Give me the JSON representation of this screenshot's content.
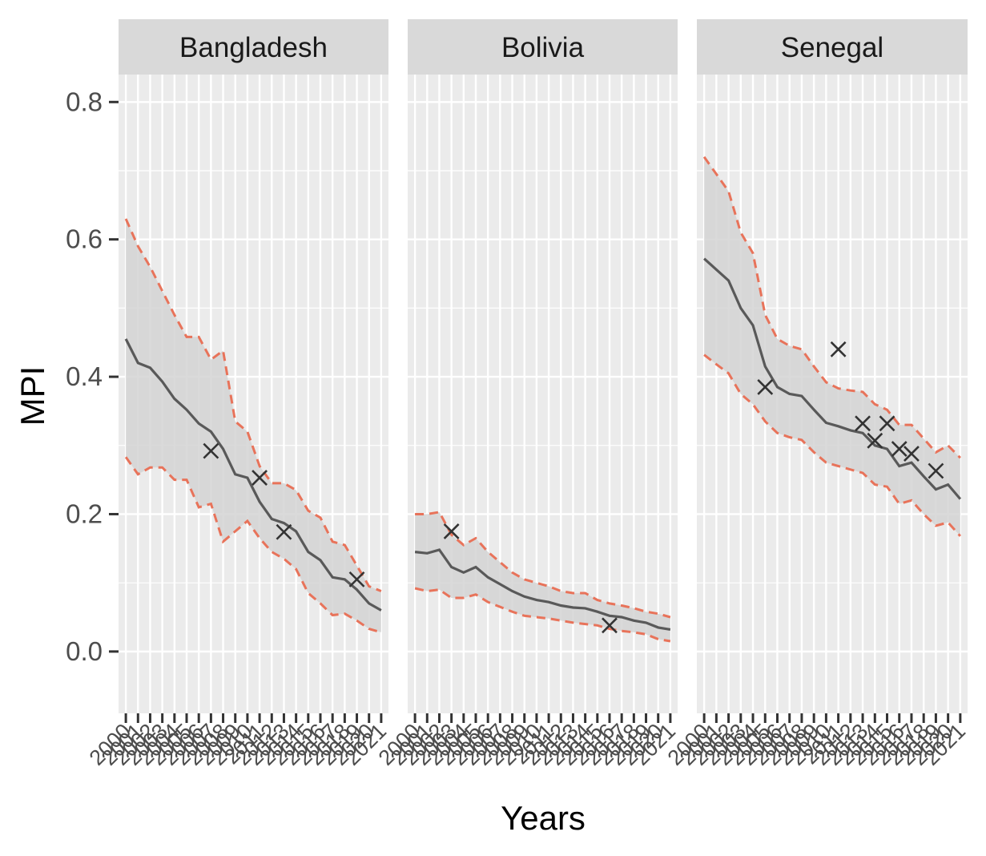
{
  "chart_data": {
    "type": "line",
    "xlabel": "Years",
    "ylabel": "MPI",
    "ylim": [
      -0.09,
      0.84
    ],
    "yticks": [
      0.0,
      0.2,
      0.4,
      0.6,
      0.8
    ],
    "ytick_labels": [
      "0.0",
      "0.2",
      "0.4",
      "0.6",
      "0.8"
    ],
    "x": [
      2000,
      2001,
      2002,
      2003,
      2004,
      2005,
      2006,
      2007,
      2008,
      2009,
      2010,
      2011,
      2012,
      2013,
      2014,
      2015,
      2016,
      2017,
      2018,
      2019,
      2020,
      2021
    ],
    "grid": true,
    "legend": "none",
    "colors": {
      "panel_bg": "#ebebeb",
      "strip_bg": "#d9d9d9",
      "grid": "#ffffff",
      "ribbon": "#d3d3d3",
      "line": "#595959",
      "bounds": "#e8735a",
      "points": "#333333"
    },
    "panels": [
      {
        "name": "Bangladesh",
        "estimate": [
          0.455,
          0.42,
          0.413,
          0.393,
          0.368,
          0.352,
          0.332,
          0.32,
          0.295,
          0.258,
          0.253,
          0.218,
          0.193,
          0.187,
          0.175,
          0.145,
          0.133,
          0.108,
          0.105,
          0.09,
          0.07,
          0.06
        ],
        "upper": [
          0.63,
          0.59,
          0.56,
          0.525,
          0.49,
          0.458,
          0.458,
          0.425,
          0.438,
          0.335,
          0.32,
          0.27,
          0.245,
          0.245,
          0.235,
          0.205,
          0.195,
          0.16,
          0.155,
          0.125,
          0.095,
          0.088
        ],
        "lower": [
          0.283,
          0.258,
          0.268,
          0.268,
          0.25,
          0.25,
          0.21,
          0.215,
          0.16,
          0.175,
          0.19,
          0.165,
          0.145,
          0.135,
          0.12,
          0.085,
          0.07,
          0.053,
          0.055,
          0.045,
          0.033,
          0.028
        ],
        "points": [
          {
            "x": 2007,
            "y": 0.292
          },
          {
            "x": 2011,
            "y": 0.253
          },
          {
            "x": 2013,
            "y": 0.174
          },
          {
            "x": 2019,
            "y": 0.105
          }
        ]
      },
      {
        "name": "Bolivia",
        "estimate": [
          0.145,
          0.143,
          0.148,
          0.123,
          0.115,
          0.123,
          0.108,
          0.098,
          0.088,
          0.08,
          0.075,
          0.072,
          0.067,
          0.064,
          0.063,
          0.058,
          0.052,
          0.05,
          0.045,
          0.042,
          0.035,
          0.032
        ],
        "upper": [
          0.2,
          0.2,
          0.203,
          0.17,
          0.155,
          0.165,
          0.145,
          0.13,
          0.115,
          0.105,
          0.1,
          0.095,
          0.088,
          0.085,
          0.085,
          0.075,
          0.07,
          0.067,
          0.063,
          0.058,
          0.055,
          0.05
        ],
        "lower": [
          0.092,
          0.088,
          0.09,
          0.078,
          0.078,
          0.083,
          0.072,
          0.065,
          0.058,
          0.052,
          0.05,
          0.048,
          0.045,
          0.042,
          0.04,
          0.038,
          0.033,
          0.03,
          0.028,
          0.025,
          0.018,
          0.015
        ],
        "points": [
          {
            "x": 2003,
            "y": 0.175
          },
          {
            "x": 2016,
            "y": 0.038
          }
        ]
      },
      {
        "name": "Senegal",
        "estimate": [
          0.572,
          0.556,
          0.54,
          0.5,
          0.475,
          0.415,
          0.385,
          0.375,
          0.372,
          0.352,
          0.333,
          0.328,
          0.322,
          0.318,
          0.3,
          0.295,
          0.27,
          0.275,
          0.255,
          0.236,
          0.243,
          0.222
        ],
        "upper": [
          0.72,
          0.695,
          0.67,
          0.61,
          0.58,
          0.49,
          0.455,
          0.445,
          0.44,
          0.415,
          0.392,
          0.383,
          0.38,
          0.378,
          0.36,
          0.352,
          0.33,
          0.33,
          0.31,
          0.29,
          0.3,
          0.282
        ],
        "lower": [
          0.432,
          0.418,
          0.405,
          0.375,
          0.36,
          0.335,
          0.318,
          0.312,
          0.308,
          0.29,
          0.275,
          0.27,
          0.265,
          0.26,
          0.243,
          0.24,
          0.215,
          0.22,
          0.2,
          0.183,
          0.188,
          0.168
        ],
        "points": [
          {
            "x": 2005,
            "y": 0.385
          },
          {
            "x": 2011,
            "y": 0.44
          },
          {
            "x": 2013,
            "y": 0.332
          },
          {
            "x": 2014,
            "y": 0.307
          },
          {
            "x": 2015,
            "y": 0.332
          },
          {
            "x": 2016,
            "y": 0.295
          },
          {
            "x": 2017,
            "y": 0.288
          },
          {
            "x": 2019,
            "y": 0.263
          }
        ]
      }
    ]
  }
}
